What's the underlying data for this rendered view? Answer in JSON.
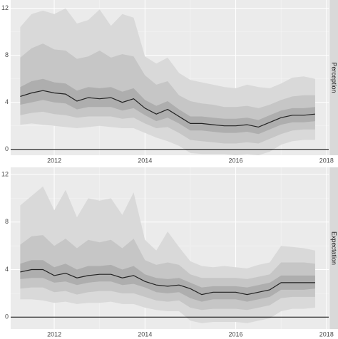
{
  "chart_data": [
    {
      "type": "fan",
      "facet": "Perception",
      "x": [
        2011.25,
        2011.5,
        2011.75,
        2012.0,
        2012.25,
        2012.5,
        2012.75,
        2013.0,
        2013.25,
        2013.5,
        2013.75,
        2014.0,
        2014.25,
        2014.5,
        2014.75,
        2015.0,
        2015.25,
        2015.5,
        2015.75,
        2016.0,
        2016.25,
        2016.5,
        2016.75,
        2017.0,
        2017.25,
        2017.5,
        2017.75
      ],
      "bands": [
        {
          "color": "#d9d9d9",
          "upper": [
            10.4,
            11.5,
            11.8,
            11.5,
            12.0,
            10.7,
            11.0,
            11.9,
            10.5,
            11.5,
            11.2,
            7.9,
            7.3,
            7.8,
            6.5,
            5.9,
            5.7,
            5.5,
            5.3,
            5.2,
            5.5,
            5.3,
            5.2,
            5.6,
            6.1,
            6.2,
            6.0
          ],
          "lower": [
            2.1,
            2.2,
            2.1,
            2.0,
            1.9,
            1.8,
            1.9,
            2.0,
            1.9,
            1.8,
            1.8,
            1.4,
            1.0,
            0.7,
            0.3,
            -0.3,
            -0.4,
            -0.4,
            -0.4,
            -0.5,
            -0.4,
            -0.5,
            -0.2,
            0.4,
            0.7,
            0.8,
            0.8
          ]
        },
        {
          "color": "#c6c6c6",
          "upper": [
            7.8,
            8.6,
            9.0,
            8.5,
            8.4,
            7.7,
            7.9,
            8.4,
            7.8,
            8.1,
            7.9,
            6.3,
            5.5,
            5.8,
            4.6,
            4.1,
            3.9,
            3.8,
            3.6,
            3.6,
            3.7,
            3.5,
            3.8,
            4.2,
            4.5,
            4.6,
            4.6
          ],
          "lower": [
            2.9,
            3.1,
            3.2,
            3.0,
            2.9,
            2.7,
            2.8,
            2.8,
            2.8,
            2.6,
            2.7,
            2.2,
            1.8,
            1.9,
            1.4,
            0.8,
            0.7,
            0.6,
            0.5,
            0.5,
            0.6,
            0.5,
            0.9,
            1.3,
            1.6,
            1.7,
            1.7
          ]
        },
        {
          "color": "#aeaeae",
          "upper": [
            5.3,
            5.8,
            6.0,
            5.7,
            5.6,
            5.0,
            5.3,
            5.2,
            5.3,
            4.9,
            5.2,
            4.2,
            3.7,
            4.1,
            3.4,
            2.8,
            2.8,
            2.7,
            2.6,
            2.6,
            2.7,
            2.5,
            2.9,
            3.3,
            3.5,
            3.5,
            3.6
          ],
          "lower": [
            3.8,
            4.0,
            4.2,
            4.0,
            3.9,
            3.4,
            3.6,
            3.6,
            3.6,
            3.3,
            3.5,
            2.9,
            2.4,
            2.7,
            2.2,
            1.6,
            1.6,
            1.5,
            1.4,
            1.4,
            1.5,
            1.3,
            1.7,
            2.1,
            2.3,
            2.3,
            2.4
          ]
        }
      ],
      "median": {
        "color": "#222222",
        "values": [
          4.5,
          4.8,
          5.0,
          4.8,
          4.7,
          4.1,
          4.4,
          4.3,
          4.4,
          4.0,
          4.3,
          3.5,
          3.0,
          3.4,
          2.8,
          2.2,
          2.2,
          2.1,
          2.0,
          2.0,
          2.1,
          1.9,
          2.3,
          2.7,
          2.9,
          2.9,
          3.0
        ]
      },
      "reference_line": 0,
      "xlim": [
        2011.04,
        2018.05
      ],
      "xticks": [
        2012,
        2014,
        2016,
        2018
      ],
      "minor_xticks": [
        2013,
        2015,
        2017
      ],
      "ylim": [
        -0.5,
        12.7
      ],
      "yticks": [
        0,
        4,
        8,
        12
      ],
      "minor_yticks": [
        2,
        6,
        10
      ],
      "grid": true
    },
    {
      "type": "fan",
      "facet": "Expectation",
      "x": [
        2011.25,
        2011.5,
        2011.75,
        2012.0,
        2012.25,
        2012.5,
        2012.75,
        2013.0,
        2013.25,
        2013.5,
        2013.75,
        2014.0,
        2014.25,
        2014.5,
        2014.75,
        2015.0,
        2015.25,
        2015.5,
        2015.75,
        2016.0,
        2016.25,
        2016.5,
        2016.75,
        2017.0,
        2017.25,
        2017.5,
        2017.75
      ],
      "bands": [
        {
          "color": "#d9d9d9",
          "upper": [
            9.4,
            10.2,
            11.0,
            9.0,
            10.7,
            8.4,
            10.0,
            9.8,
            10.0,
            8.6,
            10.5,
            6.5,
            5.6,
            7.2,
            5.9,
            4.7,
            4.3,
            4.2,
            4.3,
            4.2,
            4.1,
            4.4,
            4.6,
            6.0,
            5.9,
            5.8,
            5.6
          ],
          "lower": [
            1.5,
            1.5,
            1.4,
            1.2,
            1.3,
            1.1,
            1.2,
            1.2,
            1.3,
            1.1,
            1.1,
            0.8,
            0.6,
            0.5,
            0.5,
            -0.3,
            -0.5,
            -0.4,
            -0.4,
            -0.4,
            -0.5,
            -0.3,
            -0.1,
            0.5,
            0.7,
            0.7,
            0.8
          ]
        },
        {
          "color": "#c6c6c6",
          "upper": [
            6.1,
            6.8,
            6.9,
            6.0,
            6.6,
            5.8,
            6.5,
            6.3,
            6.5,
            5.8,
            6.6,
            4.8,
            4.4,
            4.6,
            4.4,
            3.6,
            3.3,
            3.3,
            3.3,
            3.3,
            3.2,
            3.4,
            3.6,
            4.6,
            4.6,
            4.6,
            4.5
          ],
          "lower": [
            2.4,
            2.5,
            2.5,
            2.1,
            2.2,
            1.9,
            2.1,
            2.2,
            2.2,
            2.0,
            2.0,
            1.7,
            1.4,
            1.3,
            1.4,
            0.8,
            0.6,
            0.7,
            0.7,
            0.7,
            0.6,
            0.8,
            1.0,
            1.6,
            1.7,
            1.7,
            1.7
          ]
        },
        {
          "color": "#aeaeae",
          "upper": [
            4.5,
            4.8,
            4.8,
            4.2,
            4.5,
            4.0,
            4.3,
            4.3,
            4.4,
            4.0,
            4.3,
            3.6,
            3.3,
            3.2,
            3.3,
            2.9,
            2.5,
            2.6,
            2.6,
            2.6,
            2.5,
            2.7,
            2.9,
            3.5,
            3.5,
            3.5,
            3.5
          ],
          "lower": [
            3.2,
            3.3,
            3.3,
            2.9,
            3.0,
            2.7,
            2.9,
            3.0,
            3.0,
            2.7,
            2.8,
            2.5,
            2.1,
            2.0,
            2.1,
            1.6,
            1.3,
            1.5,
            1.5,
            1.5,
            1.3,
            1.5,
            1.7,
            2.3,
            2.3,
            2.3,
            2.4
          ]
        }
      ],
      "median": {
        "color": "#222222",
        "values": [
          3.8,
          4.0,
          4.0,
          3.5,
          3.7,
          3.3,
          3.5,
          3.6,
          3.6,
          3.3,
          3.5,
          3.0,
          2.7,
          2.6,
          2.7,
          2.4,
          1.9,
          2.1,
          2.1,
          2.1,
          1.9,
          2.1,
          2.3,
          2.9,
          2.9,
          2.9,
          2.9
        ]
      },
      "reference_line": 0,
      "xlim": [
        2011.04,
        2018.05
      ],
      "xticks": [
        2012,
        2014,
        2016,
        2018
      ],
      "minor_xticks": [
        2013,
        2015,
        2017
      ],
      "ylim": [
        -1,
        12.6
      ],
      "yticks": [
        0,
        4,
        8,
        12
      ],
      "minor_yticks": [
        2,
        6,
        10
      ],
      "grid": true
    }
  ]
}
